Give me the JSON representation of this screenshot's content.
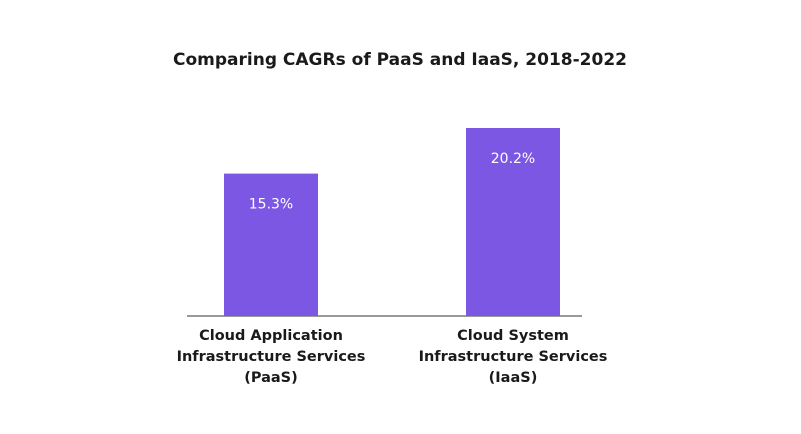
{
  "chart_data": {
    "type": "bar",
    "title": "Comparing CAGRs of PaaS and IaaS, 2018-2022",
    "categories": [
      [
        "Cloud Application",
        "Infrastructure Services",
        "(PaaS)"
      ],
      [
        "Cloud System",
        "Infrastructure Services",
        "(IaaS)"
      ]
    ],
    "values": [
      15.3,
      20.2
    ],
    "value_labels": [
      "15.3%",
      "20.2%"
    ],
    "color": "#7b57e4"
  }
}
